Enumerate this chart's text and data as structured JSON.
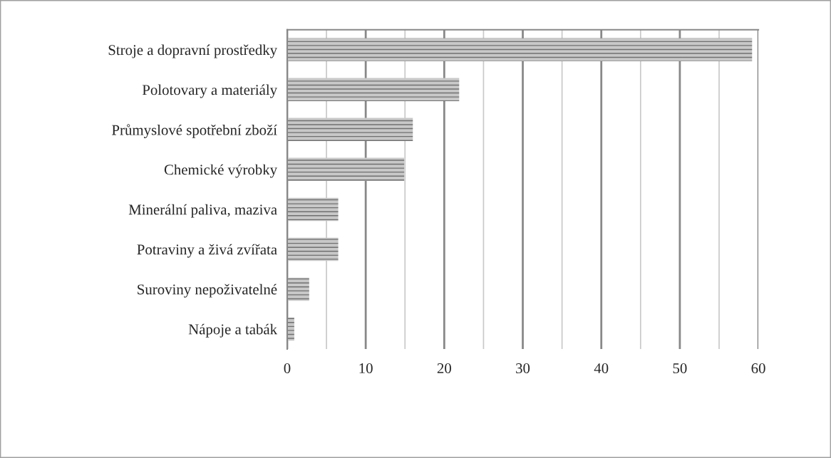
{
  "chart_data": {
    "type": "bar",
    "orientation": "horizontal",
    "categories": [
      "Stroje a dopravní prostředky",
      "Polotovary a materiály",
      "Průmyslové spotřební zboží",
      "Chemické výrobky",
      "Minerální paliva, maziva",
      "Potraviny a živá zvířata",
      "Suroviny nepoživatelné",
      "Nápoje a tabák"
    ],
    "values": [
      59.2,
      21.9,
      16.0,
      14.9,
      6.5,
      6.5,
      2.8,
      0.9
    ],
    "color": "#c8c8c8",
    "xlim": [
      0,
      60
    ],
    "xticks": [
      0,
      {
        "value": 5,
        "label": null
      },
      10,
      {
        "value": 15,
        "label": null
      },
      20,
      {
        "value": 25,
        "label": null
      },
      30,
      {
        "value": 35,
        "label": null
      },
      40,
      {
        "value": 45,
        "label": null
      },
      50,
      {
        "value": 55,
        "label": null
      },
      60
    ],
    "grid": "x"
  }
}
